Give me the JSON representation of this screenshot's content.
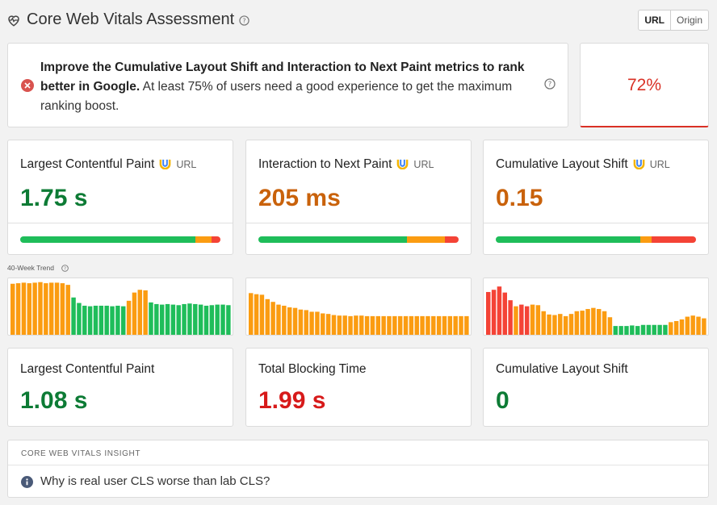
{
  "header": {
    "title": "Core Web Vitals Assessment",
    "toggle": [
      "URL",
      "Origin"
    ],
    "active_toggle": "URL"
  },
  "assessment": {
    "bold": "Improve the Cumulative Layout Shift and Interaction to Next Paint metrics to rank better in Google.",
    "text": " At least 75% of users need a good experience to get the maximum ranking boost.",
    "score": "72%"
  },
  "field_metrics": [
    {
      "name": "Largest Contentful Paint",
      "badge": "URL",
      "value": "1.75 s",
      "status": "orange-green",
      "distribution": {
        "good": 87.5,
        "ni": 8,
        "poor": 4.5
      }
    },
    {
      "name": "Interaction to Next Paint",
      "badge": "URL",
      "value": "205 ms",
      "distribution": {
        "good": 74,
        "ni": 19,
        "poor": 7
      }
    },
    {
      "name": "Cumulative Layout Shift",
      "badge": "URL",
      "value": "0.15",
      "distribution": {
        "good": 72,
        "ni": 6,
        "poor": 22
      }
    }
  ],
  "trend": {
    "label": "40-Week Trend",
    "series": [
      {
        "metric": "LCP",
        "values": [
          0.93,
          0.94,
          0.95,
          0.94,
          0.95,
          0.96,
          0.94,
          0.95,
          0.95,
          0.94,
          0.91,
          0.68,
          0.58,
          0.53,
          0.52,
          0.53,
          0.53,
          0.53,
          0.52,
          0.53,
          0.52,
          0.62,
          0.77,
          0.82,
          0.81,
          0.59,
          0.56,
          0.55,
          0.56,
          0.55,
          0.54,
          0.56,
          0.57,
          0.56,
          0.55,
          0.53,
          0.54,
          0.55,
          0.55,
          0.54
        ],
        "colors": [
          "o",
          "o",
          "o",
          "o",
          "o",
          "o",
          "o",
          "o",
          "o",
          "o",
          "o",
          "g",
          "g",
          "g",
          "g",
          "g",
          "g",
          "g",
          "g",
          "g",
          "g",
          "o",
          "o",
          "o",
          "o",
          "g",
          "g",
          "g",
          "g",
          "g",
          "g",
          "g",
          "g",
          "g",
          "g",
          "g",
          "g",
          "g",
          "g",
          "g"
        ]
      },
      {
        "metric": "INP",
        "values": [
          0.76,
          0.74,
          0.73,
          0.65,
          0.6,
          0.55,
          0.53,
          0.5,
          0.49,
          0.46,
          0.45,
          0.42,
          0.42,
          0.39,
          0.38,
          0.36,
          0.35,
          0.35,
          0.34,
          0.35,
          0.35,
          0.34,
          0.34,
          0.34,
          0.34,
          0.34,
          0.34,
          0.34,
          0.34,
          0.34,
          0.34,
          0.34,
          0.34,
          0.34,
          0.34,
          0.34,
          0.34,
          0.34,
          0.34,
          0.34
        ],
        "colors": [
          "o",
          "o",
          "o",
          "o",
          "o",
          "o",
          "o",
          "o",
          "o",
          "o",
          "o",
          "o",
          "o",
          "o",
          "o",
          "o",
          "o",
          "o",
          "o",
          "o",
          "o",
          "o",
          "o",
          "o",
          "o",
          "o",
          "o",
          "o",
          "o",
          "o",
          "o",
          "o",
          "o",
          "o",
          "o",
          "o",
          "o",
          "o",
          "o",
          "o"
        ]
      },
      {
        "metric": "CLS",
        "values": [
          0.78,
          0.82,
          0.88,
          0.77,
          0.63,
          0.52,
          0.55,
          0.52,
          0.55,
          0.54,
          0.43,
          0.37,
          0.36,
          0.38,
          0.34,
          0.38,
          0.43,
          0.44,
          0.47,
          0.49,
          0.47,
          0.43,
          0.32,
          0.16,
          0.16,
          0.16,
          0.17,
          0.16,
          0.18,
          0.18,
          0.18,
          0.18,
          0.18,
          0.23,
          0.25,
          0.28,
          0.33,
          0.35,
          0.33,
          0.3
        ],
        "colors": [
          "r",
          "r",
          "r",
          "r",
          "r",
          "o",
          "r",
          "r",
          "o",
          "o",
          "o",
          "o",
          "o",
          "o",
          "o",
          "o",
          "o",
          "o",
          "o",
          "o",
          "o",
          "o",
          "o",
          "g",
          "g",
          "g",
          "g",
          "g",
          "g",
          "g",
          "g",
          "g",
          "g",
          "o",
          "o",
          "o",
          "o",
          "o",
          "o",
          "o"
        ]
      }
    ]
  },
  "lab_metrics": [
    {
      "name": "Largest Contentful Paint",
      "value": "1.08 s"
    },
    {
      "name": "Total Blocking Time",
      "value": "1.99 s"
    },
    {
      "name": "Cumulative Layout Shift",
      "value": "0"
    }
  ],
  "insight": {
    "heading": "CORE WEB VITALS INSIGHT",
    "question": "Why is real user CLS worse than lab CLS?"
  },
  "colors": {
    "good": "#1fbd5a",
    "ni": "#fb9c11",
    "poor": "#f44336",
    "error": "#d93025"
  }
}
